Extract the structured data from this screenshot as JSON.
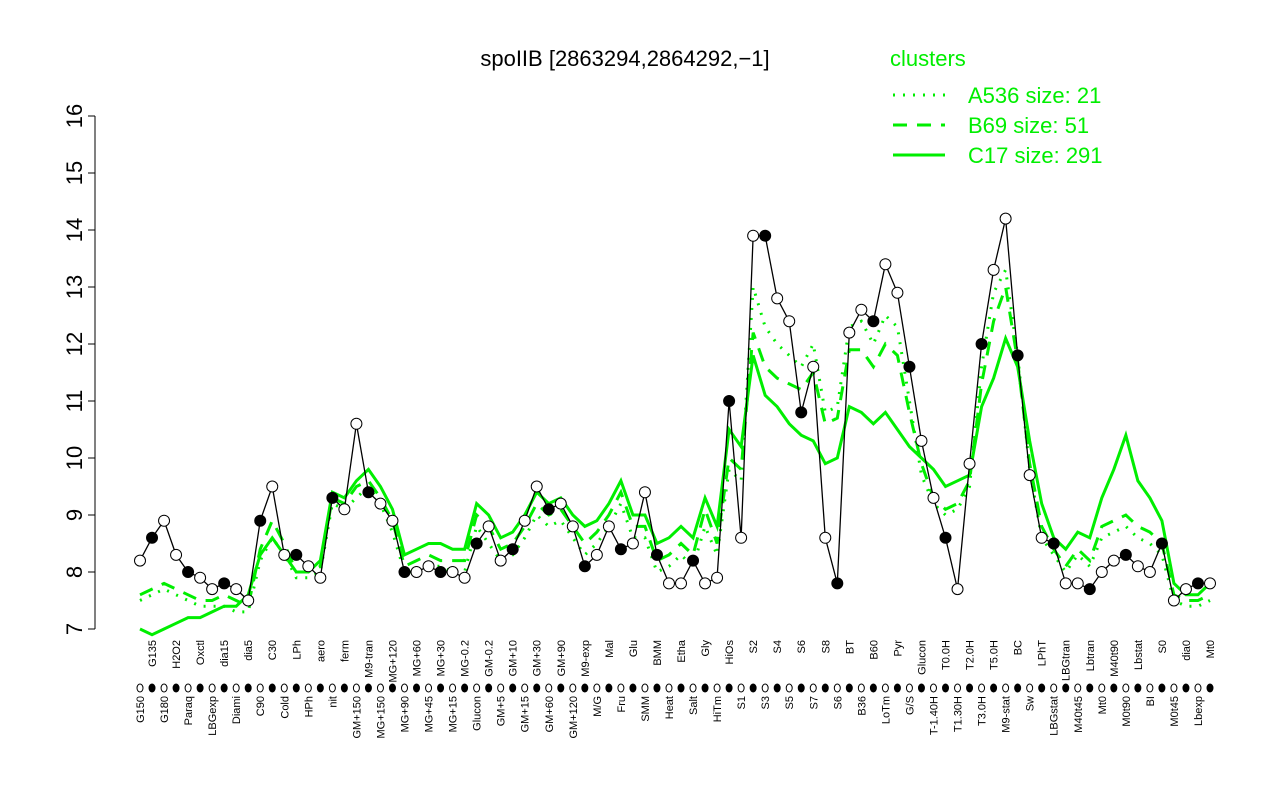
{
  "chart_data": {
    "type": "line",
    "title": "spoIIB [2863294,2864292,−1]",
    "legend_title": "clusters",
    "legend_color": "#00ee00",
    "color": "#000000",
    "categories": [
      "G150",
      "G135",
      "G180",
      "H2O2",
      "Paraq",
      "Oxctl",
      "LBGexp",
      "dia15",
      "Diami",
      "dia5",
      "C90",
      "C30",
      "Cold",
      "LPh",
      "HPh",
      "aero",
      "nit",
      "ferm",
      "GM+150",
      "M9-tran",
      "MG+150",
      "MG+120",
      "MG+90",
      "MG+60",
      "MG+45",
      "MG+30",
      "MG+15",
      "MG-0.2",
      "Glucon",
      "GM-0.2",
      "GM+5",
      "GM+10",
      "GM+15",
      "GM+30",
      "GM+60",
      "GM+90",
      "GM+120",
      "M9-exp",
      "M/G",
      "Mal",
      "Fru",
      "Glu",
      "SMM",
      "BMM",
      "Heat",
      "Etha",
      "Salt",
      "Gly",
      "HiTm",
      "HiOs",
      "S1",
      "S2",
      "S3",
      "S4",
      "S5",
      "S6",
      "S7",
      "S8",
      "S6",
      "BT",
      "B36",
      "B60",
      "LoTm",
      "Pyr",
      "G/S",
      "Glucon",
      "T-1.40H",
      "T0.0H",
      "T1.30H",
      "T2.0H",
      "T3.0H",
      "T5.0H",
      "M9-stat",
      "BC",
      "Sw",
      "LPhT",
      "LBGstat",
      "LBGtran",
      "M40t45",
      "Lbtran",
      "Mt0",
      "M40t90",
      "M0t90",
      "Lbstat",
      "BI",
      "S0",
      "M0t45",
      "dia0",
      "Lbexp",
      "Mt0"
    ],
    "values": [
      8.2,
      8.6,
      8.9,
      8.3,
      8.0,
      7.9,
      7.7,
      7.8,
      7.7,
      7.5,
      8.9,
      9.5,
      8.3,
      8.3,
      8.1,
      7.9,
      9.3,
      9.1,
      10.6,
      9.4,
      9.2,
      8.9,
      8.0,
      8.0,
      8.1,
      8.0,
      8.0,
      7.9,
      8.5,
      8.8,
      8.2,
      8.4,
      8.9,
      9.5,
      9.1,
      9.2,
      8.8,
      8.1,
      8.3,
      8.8,
      8.4,
      8.5,
      9.4,
      8.3,
      7.8,
      7.8,
      8.2,
      7.8,
      7.9,
      11.0,
      8.6,
      13.9,
      13.9,
      12.8,
      12.4,
      10.8,
      11.6,
      8.6,
      7.8,
      12.2,
      12.6,
      12.4,
      13.4,
      12.9,
      11.6,
      10.3,
      9.3,
      8.6,
      7.7,
      9.9,
      12.0,
      13.3,
      14.2,
      11.8,
      9.7,
      8.6,
      8.5,
      7.8,
      7.8,
      7.7,
      8.0,
      8.2,
      8.3,
      8.1,
      8.0,
      8.5,
      7.5,
      7.7,
      7.8,
      7.8
    ],
    "series": [
      {
        "name": "A536 size: 21",
        "style": "dotted",
        "color": "#00ee00",
        "values": [
          7.5,
          7.6,
          7.7,
          7.6,
          7.5,
          7.4,
          7.4,
          7.4,
          7.3,
          7.3,
          8.2,
          8.6,
          8.3,
          7.9,
          7.9,
          8.0,
          9.2,
          9.1,
          9.3,
          9.5,
          9.2,
          8.7,
          8.0,
          8.0,
          8.1,
          8.1,
          8.0,
          8.0,
          8.8,
          8.5,
          8.2,
          8.3,
          8.6,
          9.0,
          8.8,
          8.9,
          8.6,
          8.3,
          8.5,
          8.8,
          9.2,
          8.6,
          8.6,
          8.0,
          8.1,
          8.3,
          8.1,
          8.8,
          8.3,
          9.8,
          9.6,
          13.0,
          12.3,
          12.0,
          11.8,
          11.6,
          12.0,
          10.8,
          10.9,
          12.3,
          12.4,
          12.0,
          12.5,
          12.3,
          11.0,
          9.7,
          9.2,
          9.0,
          9.1,
          9.5,
          11.6,
          12.9,
          13.3,
          11.8,
          9.8,
          8.6,
          8.3,
          8.0,
          8.3,
          8.1,
          8.6,
          8.7,
          8.8,
          8.6,
          8.5,
          8.3,
          7.5,
          7.4,
          7.4,
          7.5
        ]
      },
      {
        "name": "B69 size: 51",
        "style": "dashed",
        "color": "#00ee00",
        "values": [
          7.6,
          7.7,
          7.8,
          7.7,
          7.6,
          7.5,
          7.5,
          7.6,
          7.5,
          7.4,
          8.4,
          8.9,
          8.5,
          8.0,
          8.0,
          8.1,
          9.3,
          9.2,
          9.5,
          9.6,
          9.3,
          8.9,
          8.1,
          8.2,
          8.3,
          8.2,
          8.2,
          8.2,
          9.0,
          8.8,
          8.4,
          8.5,
          8.8,
          9.2,
          9.0,
          9.1,
          8.8,
          8.5,
          8.7,
          9.0,
          9.4,
          8.8,
          8.8,
          8.2,
          8.3,
          8.5,
          8.3,
          9.1,
          8.5,
          10.0,
          9.8,
          12.2,
          11.6,
          11.4,
          11.3,
          11.2,
          11.5,
          10.6,
          10.7,
          11.9,
          11.9,
          11.6,
          12.0,
          11.8,
          10.8,
          9.9,
          9.3,
          9.1,
          9.2,
          9.6,
          11.3,
          12.4,
          13.0,
          11.7,
          9.9,
          8.8,
          8.4,
          8.1,
          8.4,
          8.2,
          8.8,
          8.9,
          9.0,
          8.8,
          8.7,
          8.5,
          7.6,
          7.5,
          7.5,
          7.6
        ]
      },
      {
        "name": "C17 size: 291",
        "style": "solid",
        "color": "#00ee00",
        "values": [
          7.0,
          6.9,
          7.0,
          7.1,
          7.2,
          7.2,
          7.3,
          7.4,
          7.4,
          7.6,
          8.3,
          8.6,
          8.3,
          8.0,
          8.0,
          8.2,
          9.4,
          9.3,
          9.6,
          9.8,
          9.5,
          9.1,
          8.3,
          8.4,
          8.5,
          8.5,
          8.4,
          8.4,
          9.2,
          9.0,
          8.6,
          8.7,
          9.0,
          9.4,
          9.2,
          9.3,
          9.0,
          8.8,
          8.9,
          9.2,
          9.6,
          9.0,
          9.0,
          8.5,
          8.6,
          8.8,
          8.6,
          9.3,
          8.8,
          10.5,
          10.2,
          11.8,
          11.1,
          10.9,
          10.6,
          10.4,
          10.3,
          9.9,
          10.0,
          10.9,
          10.8,
          10.6,
          10.8,
          10.5,
          10.2,
          10.0,
          9.8,
          9.5,
          9.6,
          9.7,
          10.9,
          11.4,
          12.1,
          11.6,
          10.3,
          9.2,
          8.6,
          8.4,
          8.7,
          8.6,
          9.3,
          9.8,
          10.4,
          9.6,
          9.3,
          8.9,
          7.8,
          7.6,
          7.6,
          7.8
        ]
      }
    ],
    "ylim": [
      7,
      16
    ],
    "yticks": [
      7,
      8,
      9,
      10,
      11,
      12,
      13,
      14,
      15,
      16
    ]
  }
}
